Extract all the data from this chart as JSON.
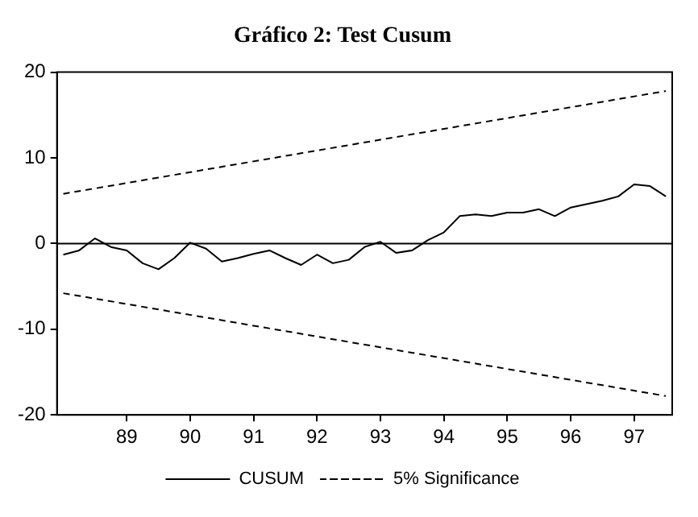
{
  "chart_data": {
    "type": "line",
    "title": "Gráfico 2: Test Cusum",
    "x": [
      1988,
      1988.25,
      1988.5,
      1988.75,
      1989,
      1989.25,
      1989.5,
      1989.75,
      1990,
      1990.25,
      1990.5,
      1990.75,
      1991,
      1991.25,
      1991.5,
      1991.75,
      1992,
      1992.25,
      1992.5,
      1992.75,
      1993,
      1993.25,
      1993.5,
      1993.75,
      1994,
      1994.25,
      1994.5,
      1994.75,
      1995,
      1995.25,
      1995.5,
      1995.75,
      1996,
      1996.25,
      1996.5,
      1996.75,
      1997,
      1997.25,
      1997.5
    ],
    "series": [
      {
        "name": "CUSUM",
        "color": "#000000",
        "line_style": "solid",
        "values": [
          -1.3,
          -0.8,
          0.6,
          -0.4,
          -0.8,
          -2.3,
          -3.0,
          -1.7,
          0.1,
          -0.6,
          -2.1,
          -1.7,
          -1.2,
          -0.8,
          -1.7,
          -2.5,
          -1.3,
          -2.3,
          -1.9,
          -0.4,
          0.2,
          -1.1,
          -0.8,
          0.4,
          1.3,
          3.2,
          3.4,
          3.2,
          3.6,
          3.6,
          4.0,
          3.2,
          4.2,
          4.6,
          5.0,
          5.5,
          6.9,
          6.7,
          5.5
        ]
      },
      {
        "name": "5% Significance",
        "color": "#000000",
        "line_style": "dashed",
        "values": [
          5.8,
          null,
          null,
          null,
          null,
          null,
          null,
          null,
          null,
          null,
          null,
          null,
          null,
          null,
          null,
          null,
          null,
          null,
          null,
          null,
          null,
          null,
          null,
          null,
          null,
          null,
          null,
          null,
          null,
          null,
          null,
          null,
          null,
          null,
          null,
          null,
          null,
          null,
          17.8
        ]
      },
      {
        "color": "#000000",
        "line_style": "dashed",
        "values": [
          -5.8,
          null,
          null,
          null,
          null,
          null,
          null,
          null,
          null,
          null,
          null,
          null,
          null,
          null,
          null,
          null,
          null,
          null,
          null,
          null,
          null,
          null,
          null,
          null,
          null,
          null,
          null,
          null,
          null,
          null,
          null,
          null,
          null,
          null,
          null,
          null,
          null,
          null,
          -17.8
        ]
      }
    ],
    "xlim": [
      1987.9,
      1997.6
    ],
    "xticks": [
      {
        "value": 1989,
        "label": "89"
      },
      {
        "value": 1990,
        "label": "90"
      },
      {
        "value": 1991,
        "label": "91"
      },
      {
        "value": 1992,
        "label": "92"
      },
      {
        "value": 1993,
        "label": "93"
      },
      {
        "value": 1994,
        "label": "94"
      },
      {
        "value": 1995,
        "label": "95"
      },
      {
        "value": 1996,
        "label": "96"
      },
      {
        "value": 1997,
        "label": "97"
      }
    ],
    "ylim": [
      -20,
      20
    ],
    "yticks": [
      -20,
      -10,
      0,
      10,
      20
    ],
    "ref_lines": [
      {
        "axis": "y",
        "value": 0,
        "color": "#000000"
      }
    ],
    "grid": false,
    "legend": "bottom",
    "marker": "none"
  }
}
